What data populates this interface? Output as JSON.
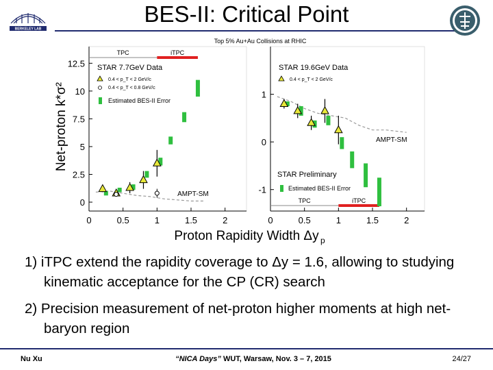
{
  "slide": {
    "title": "BES-II: Critical Point",
    "notes": [
      "1) iTPC extend the rapidity coverage to Δy = 1.6, allowing to studying kinematic acceptance for the CP (CR) search",
      "2) Precision measurement of net-proton higher moments at high net-baryon region"
    ],
    "footer": {
      "author": "Nu Xu",
      "event_quote": "“NICA Days”",
      "event_rest": " WUT, Warsaw, Nov. 3 – 7, 2015",
      "page": "24/27"
    },
    "logo_left_text": "BERKELEY LAB"
  },
  "colors": {
    "title_rule": "#1f2a6e",
    "triangle_fill": "#e8e83a",
    "bes_error_green": "#2fbf3f",
    "itpc_bar_red": "#e02020",
    "ampt_dash": "#999999"
  },
  "chart_data": {
    "type": "scatter",
    "banner": "Top 5% Au+Au Collisions at RHIC",
    "ylabel": "Net-proton k*σ²",
    "xlabel": "Proton Rapidity Width Δy",
    "xlabel_sub": "p",
    "panels": [
      {
        "name": "STAR 7.7GeV Data",
        "xlim": [
          0,
          2.2
        ],
        "ylim": [
          -0.8,
          14.0
        ],
        "xticks": [
          0,
          0.5,
          1,
          1.5,
          2
        ],
        "xtick_labels": [
          "0",
          "0.5",
          "1",
          "1.5",
          "2"
        ],
        "yticks": [
          0,
          2.5,
          5,
          7.5,
          10,
          12.5
        ],
        "ytick_labels": [
          "0",
          "2.5",
          "5",
          "7.5",
          "10",
          "12.5"
        ],
        "tpc_label": "TPC",
        "itpc_label": "iTPC",
        "tpc_range": [
          0,
          1
        ],
        "itpc_range": [
          1,
          1.6
        ],
        "legend": {
          "series1": "0.4 < p_T < 2 GeV/c",
          "series2": "0.4 < p_T < 0.8 GeV/c",
          "bes": "Estimated BES-II Error"
        },
        "triangles": [
          {
            "x": 0.2,
            "y": 1.2,
            "err": 0.3
          },
          {
            "x": 0.4,
            "y": 0.8,
            "err": 0.3
          },
          {
            "x": 0.6,
            "y": 1.3,
            "err": 0.5
          },
          {
            "x": 0.8,
            "y": 2.0,
            "err": 0.8
          },
          {
            "x": 1.0,
            "y": 3.5,
            "err": 1.2
          }
        ],
        "circles": [
          {
            "x": 0.4,
            "y": 0.7,
            "err": 0.2
          },
          {
            "x": 1.0,
            "y": 0.8,
            "err": 0.4
          }
        ],
        "bes_bars": [
          {
            "x": 0.25,
            "lo": 0.6,
            "hi": 1.0
          },
          {
            "x": 0.45,
            "lo": 0.9,
            "hi": 1.3
          },
          {
            "x": 0.65,
            "lo": 1.1,
            "hi": 1.6
          },
          {
            "x": 0.85,
            "lo": 2.2,
            "hi": 2.8
          },
          {
            "x": 1.05,
            "lo": 3.3,
            "hi": 4.0
          },
          {
            "x": 1.2,
            "lo": 5.2,
            "hi": 5.9
          },
          {
            "x": 1.4,
            "lo": 7.2,
            "hi": 8.1
          },
          {
            "x": 1.6,
            "lo": 9.5,
            "hi": 11.0
          }
        ],
        "ampt_label": "AMPT-SM",
        "ampt_curve": [
          [
            0.1,
            0.9
          ],
          [
            0.3,
            1.0
          ],
          [
            0.5,
            0.8
          ],
          [
            0.7,
            0.6
          ],
          [
            0.9,
            0.5
          ],
          [
            1.1,
            0.3
          ],
          [
            1.3,
            0.2
          ],
          [
            1.5,
            0.1
          ],
          [
            1.7,
            0.1
          ]
        ]
      },
      {
        "name": "STAR 19.6GeV Data",
        "xlim": [
          0,
          2.2
        ],
        "ylim": [
          -1.45,
          2.0
        ],
        "xticks": [
          0,
          0.5,
          1,
          1.5,
          2
        ],
        "xtick_labels": [
          "0",
          "0.5",
          "1",
          "1.5",
          "2"
        ],
        "yticks": [
          -1,
          0,
          1
        ],
        "ytick_labels": [
          "-1",
          "0",
          "1"
        ],
        "tpc_label": "TPC",
        "itpc_label": "iTPC",
        "tpc_range": [
          0,
          1
        ],
        "itpc_range": [
          1,
          1.6
        ],
        "legend": {
          "series1": "0.4 < p_T < 2 GeV/c",
          "bes": "Estimated BES-II Error"
        },
        "preliminary": "STAR Preliminary",
        "triangles": [
          {
            "x": 0.2,
            "y": 0.8,
            "err": 0.1
          },
          {
            "x": 0.4,
            "y": 0.65,
            "err": 0.15
          },
          {
            "x": 0.6,
            "y": 0.4,
            "err": 0.15
          },
          {
            "x": 0.8,
            "y": 0.65,
            "err": 0.25
          },
          {
            "x": 1.0,
            "y": 0.25,
            "err": 0.3
          }
        ],
        "circles": [],
        "bes_bars": [
          {
            "x": 0.25,
            "lo": 0.75,
            "hi": 0.85
          },
          {
            "x": 0.45,
            "lo": 0.55,
            "hi": 0.75
          },
          {
            "x": 0.65,
            "lo": 0.3,
            "hi": 0.45
          },
          {
            "x": 0.85,
            "lo": 0.35,
            "hi": 0.55
          },
          {
            "x": 1.05,
            "lo": -0.15,
            "hi": 0.1
          },
          {
            "x": 1.2,
            "lo": -0.55,
            "hi": -0.2
          },
          {
            "x": 1.4,
            "lo": -0.95,
            "hi": -0.45
          },
          {
            "x": 1.6,
            "lo": -1.35,
            "hi": -0.75
          }
        ],
        "ampt_label": "AMPT-SM",
        "ampt_curve": [
          [
            0.1,
            0.95
          ],
          [
            0.3,
            0.85
          ],
          [
            0.5,
            0.7
          ],
          [
            0.7,
            0.6
          ],
          [
            0.9,
            0.55
          ],
          [
            1.1,
            0.5
          ],
          [
            1.3,
            0.35
          ],
          [
            1.5,
            0.25
          ],
          [
            1.7,
            0.25
          ],
          [
            2.0,
            0.2
          ]
        ]
      }
    ]
  }
}
